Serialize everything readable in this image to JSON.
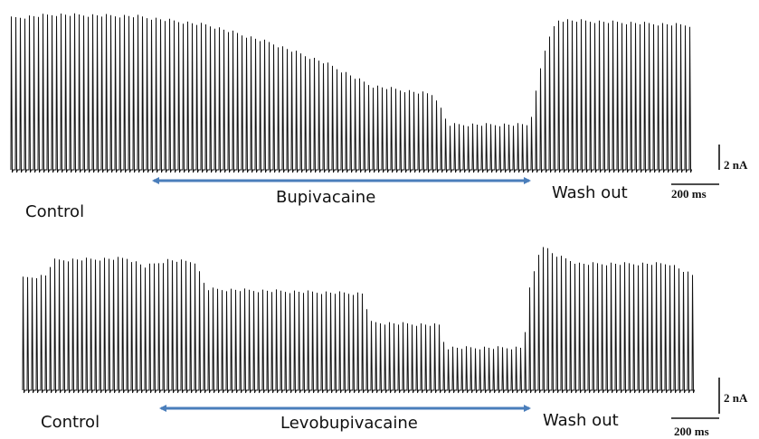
{
  "panels": [
    {
      "labels": {
        "control": "Control",
        "drug": "Bupivacaine",
        "washout": "Wash out"
      },
      "scale": {
        "current": "2 nA",
        "time": "200 ms"
      }
    },
    {
      "labels": {
        "control": "Control",
        "drug": "Levobupivacaine",
        "washout": "Wash out"
      },
      "scale": {
        "current": "2 nA",
        "time": "200 ms"
      }
    }
  ]
}
